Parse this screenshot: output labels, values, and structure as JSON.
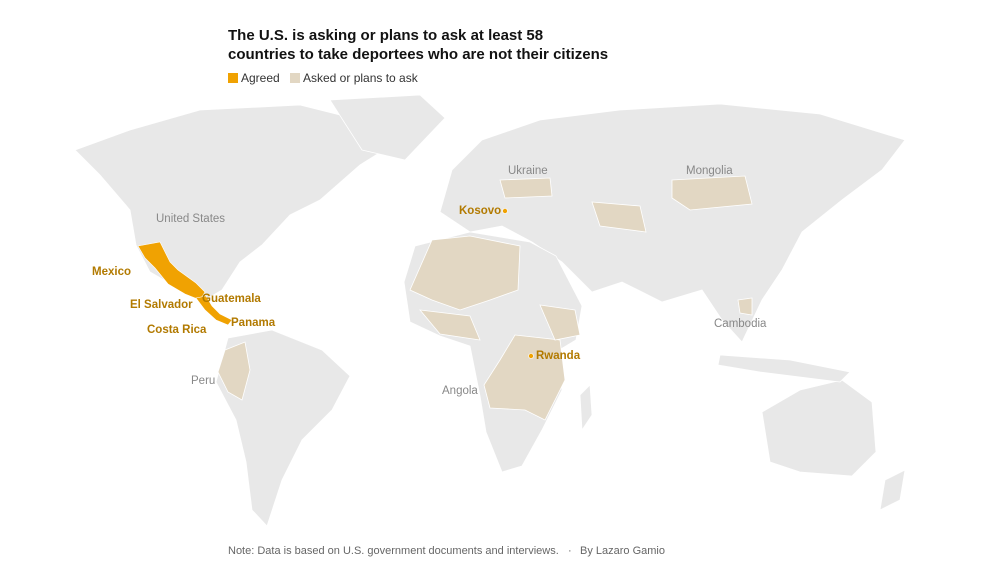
{
  "header": {
    "title": [
      "The U.S. is asking or plans to ask at least 58",
      "countries to take deportees who are not their citizens"
    ]
  },
  "legend": {
    "items": [
      {
        "label": "Agreed",
        "color": "#f0a202"
      },
      {
        "label": "Asked or plans to ask",
        "color": "#e2d7c3"
      }
    ]
  },
  "map": {
    "agreed_labels": [
      "Mexico",
      "Kosovo",
      "El Salvador",
      "Guatemala",
      "Panama",
      "Costa Rica",
      "Rwanda"
    ],
    "other_labels": [
      "United States",
      "Ukraine",
      "Mongolia",
      "Cambodia",
      "Peru",
      "Angola"
    ]
  },
  "footer": {
    "note": "Note: Data is based on U.S. government documents and interviews.",
    "separator": "·",
    "byline": "By Lazaro Gamio"
  }
}
